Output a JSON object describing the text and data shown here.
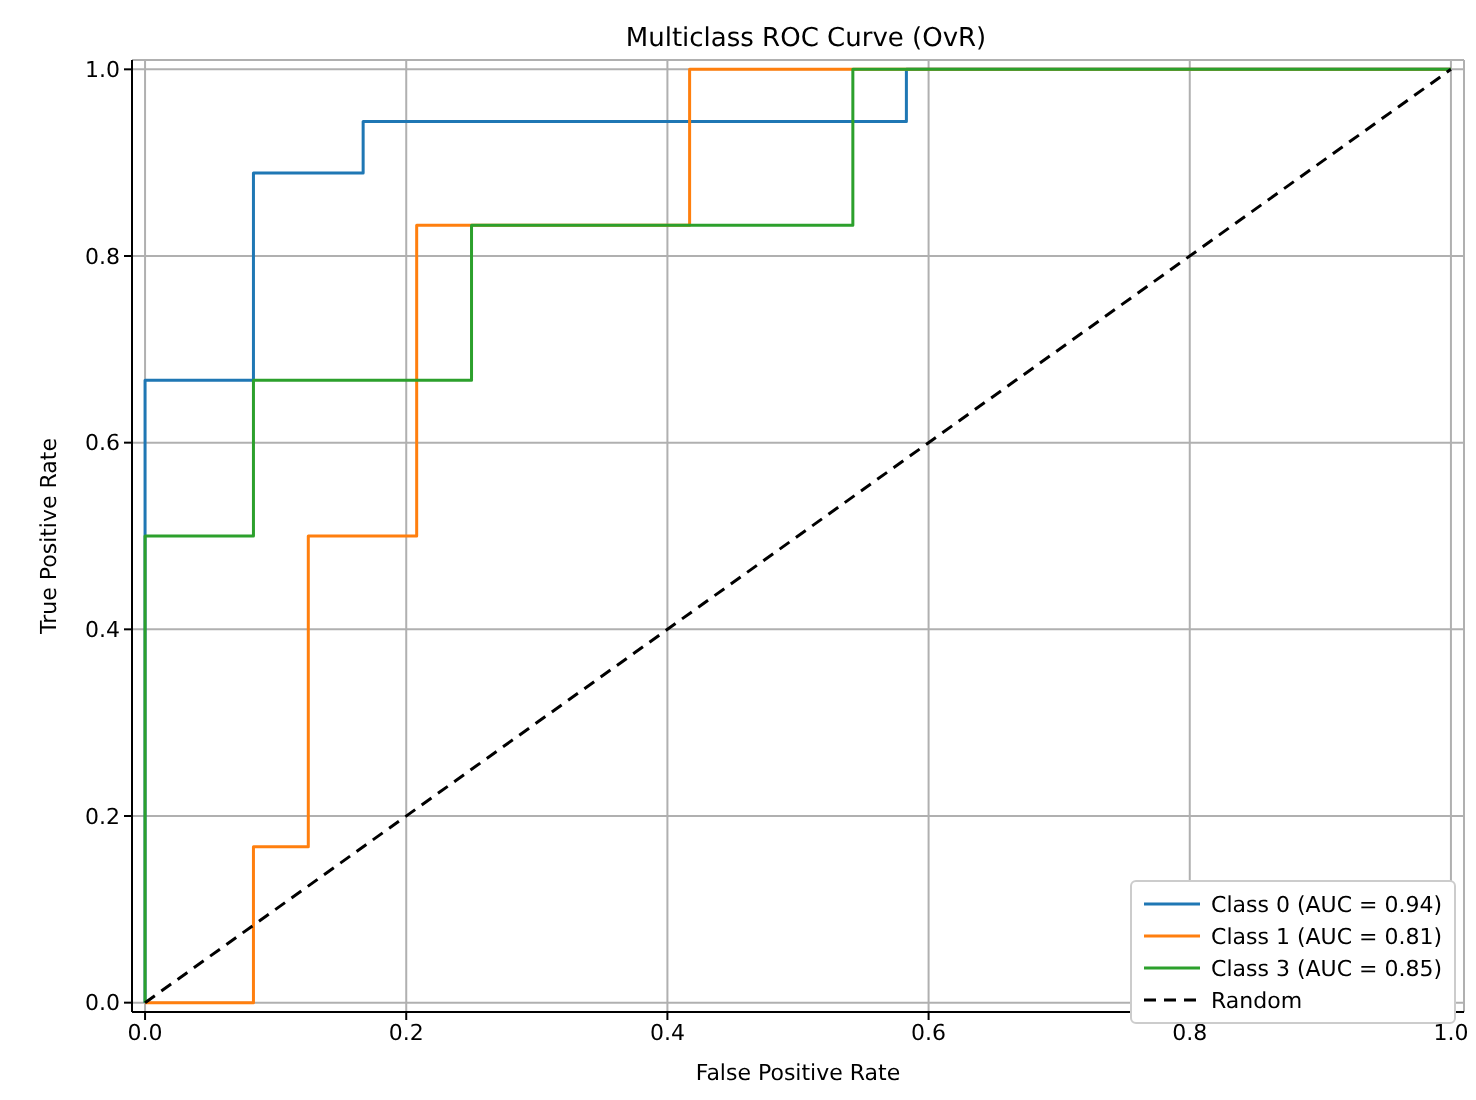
{
  "chart_data": {
    "type": "line",
    "title": "Multiclass ROC Curve (OvR)",
    "xlabel": "False Positive Rate",
    "ylabel": "True Positive Rate",
    "xlim": [
      -0.01,
      1.01
    ],
    "ylim": [
      -0.01,
      1.01
    ],
    "xticks": [
      {
        "value": 0,
        "label": "0.0"
      },
      {
        "value": 0.2,
        "label": "0.2"
      },
      {
        "value": 0.4,
        "label": "0.4"
      },
      {
        "value": 0.6,
        "label": "0.6"
      },
      {
        "value": 0.8,
        "label": "0.8"
      },
      {
        "value": 1,
        "label": "1.0"
      }
    ],
    "yticks": [
      {
        "value": 0,
        "label": "0.0"
      },
      {
        "value": 0.2,
        "label": "0.2"
      },
      {
        "value": 0.4,
        "label": "0.4"
      },
      {
        "value": 0.6,
        "label": "0.6"
      },
      {
        "value": 0.8,
        "label": "0.8"
      },
      {
        "value": 1,
        "label": "1.0"
      }
    ],
    "grid": true,
    "legend": "bottom right",
    "marker": "none",
    "series": [
      {
        "name": "Class 0 (AUC = 0.94)",
        "color": "#1f77b4",
        "x": [
          0,
          0,
          0.083,
          0.083,
          0.167,
          0.167,
          0.583,
          0.583,
          1
        ],
        "values": [
          0,
          0.667,
          0.667,
          0.889,
          0.889,
          0.944,
          0.944,
          1,
          1
        ]
      },
      {
        "name": "Class 1 (AUC = 0.81)",
        "color": "#ff7f0e",
        "x": [
          0,
          0.083,
          0.083,
          0.125,
          0.125,
          0.208,
          0.208,
          0.417,
          0.417,
          1
        ],
        "values": [
          0,
          0,
          0.167,
          0.167,
          0.5,
          0.5,
          0.833,
          0.833,
          1,
          1
        ]
      },
      {
        "name": "Class 3 (AUC = 0.85)",
        "color": "#2ca02c",
        "x": [
          0,
          0,
          0.083,
          0.083,
          0.25,
          0.25,
          0.542,
          0.542,
          1
        ],
        "values": [
          0,
          0.5,
          0.5,
          0.667,
          0.667,
          0.833,
          0.833,
          1,
          1
        ]
      },
      {
        "name": "Random",
        "color": "#000000",
        "line_style": "dashed",
        "x": [
          0,
          1
        ],
        "values": [
          0,
          1
        ]
      }
    ]
  }
}
